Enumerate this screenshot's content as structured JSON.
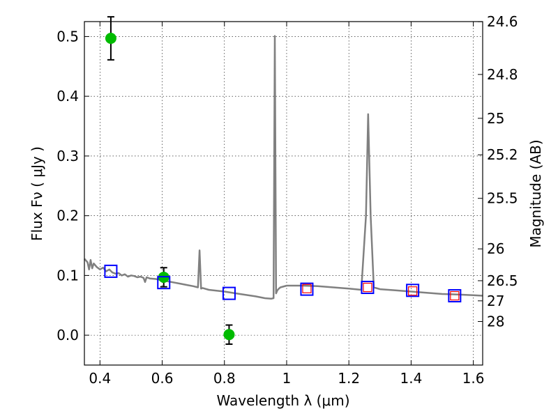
{
  "chart_data": {
    "type": "line",
    "xlabel": "Wavelength  λ (μm)",
    "ylabel": "Flux  Fν  ( μJy )",
    "y2label": "Magnitude (AB)",
    "xlim": [
      0.35,
      1.63
    ],
    "ylim": [
      -0.05,
      0.525
    ],
    "grid": true,
    "x_ticks": [
      0.4,
      0.6,
      0.8,
      1.0,
      1.2,
      1.4,
      1.6
    ],
    "x_tick_labels": [
      "0.4",
      "0.6",
      "0.8",
      "1",
      "1.2",
      "1.4",
      "1.6"
    ],
    "y_ticks": [
      0.0,
      0.1,
      0.2,
      0.3,
      0.4,
      0.5
    ],
    "y_tick_labels": [
      "0.0",
      "0.1",
      "0.2",
      "0.3",
      "0.4",
      "0.5"
    ],
    "y2_ticks": [
      {
        "label": "24.6",
        "flux": 0.5248
      },
      {
        "label": "24.8",
        "flux": 0.4365
      },
      {
        "label": "25",
        "flux": 0.3631
      },
      {
        "label": "25.2",
        "flux": 0.302
      },
      {
        "label": "25.5",
        "flux": 0.2291
      },
      {
        "label": "26",
        "flux": 0.1445
      },
      {
        "label": "26.5",
        "flux": 0.0912
      },
      {
        "label": "27",
        "flux": 0.0575
      },
      {
        "label": "28",
        "flux": 0.0229
      }
    ],
    "series": [
      {
        "style": "model-spectrum",
        "color": "#808080",
        "x": [
          0.35,
          0.36,
          0.365,
          0.37,
          0.375,
          0.38,
          0.39,
          0.4,
          0.41,
          0.42,
          0.43,
          0.44,
          0.45,
          0.46,
          0.47,
          0.48,
          0.49,
          0.5,
          0.51,
          0.52,
          0.53,
          0.54,
          0.545,
          0.55,
          0.56,
          0.58,
          0.6,
          0.62,
          0.64,
          0.66,
          0.68,
          0.7,
          0.715,
          0.72,
          0.725,
          0.73,
          0.75,
          0.8,
          0.85,
          0.9,
          0.93,
          0.95,
          0.958,
          0.962,
          0.966,
          0.97,
          0.975,
          0.98,
          1.0,
          1.05,
          1.1,
          1.15,
          1.2,
          1.24,
          1.255,
          1.262,
          1.27,
          1.28,
          1.3,
          1.35,
          1.4,
          1.45,
          1.5,
          1.55,
          1.6,
          1.63
        ],
        "y": [
          0.128,
          0.122,
          0.11,
          0.126,
          0.112,
          0.12,
          0.114,
          0.11,
          0.113,
          0.107,
          0.11,
          0.105,
          0.103,
          0.104,
          0.1,
          0.102,
          0.098,
          0.1,
          0.099,
          0.097,
          0.098,
          0.096,
          0.089,
          0.097,
          0.095,
          0.094,
          0.092,
          0.09,
          0.088,
          0.086,
          0.084,
          0.082,
          0.08,
          0.142,
          0.078,
          0.079,
          0.076,
          0.073,
          0.069,
          0.065,
          0.062,
          0.061,
          0.062,
          0.501,
          0.07,
          0.075,
          0.078,
          0.08,
          0.083,
          0.083,
          0.082,
          0.08,
          0.078,
          0.076,
          0.2,
          0.37,
          0.2,
          0.08,
          0.077,
          0.075,
          0.073,
          0.071,
          0.069,
          0.068,
          0.067,
          0.066
        ]
      },
      {
        "style": "measured-points",
        "color": "#00bb00",
        "x": [
          0.435,
          0.605,
          0.815
        ],
        "y": [
          0.497,
          0.097,
          0.001
        ],
        "yerr": [
          0.036,
          0.016,
          0.016
        ]
      },
      {
        "style": "model-photometry-squares",
        "color": "#0000ff",
        "x": [
          0.435,
          0.605,
          0.815,
          1.065,
          1.26,
          1.405,
          1.54
        ],
        "y": [
          0.107,
          0.088,
          0.07,
          0.077,
          0.08,
          0.075,
          0.066
        ]
      },
      {
        "style": "observed-photometry-squares",
        "color": "#ff0000",
        "x": [
          1.065,
          1.26,
          1.405,
          1.54
        ],
        "y": [
          0.078,
          0.08,
          0.074,
          0.066
        ]
      }
    ]
  }
}
